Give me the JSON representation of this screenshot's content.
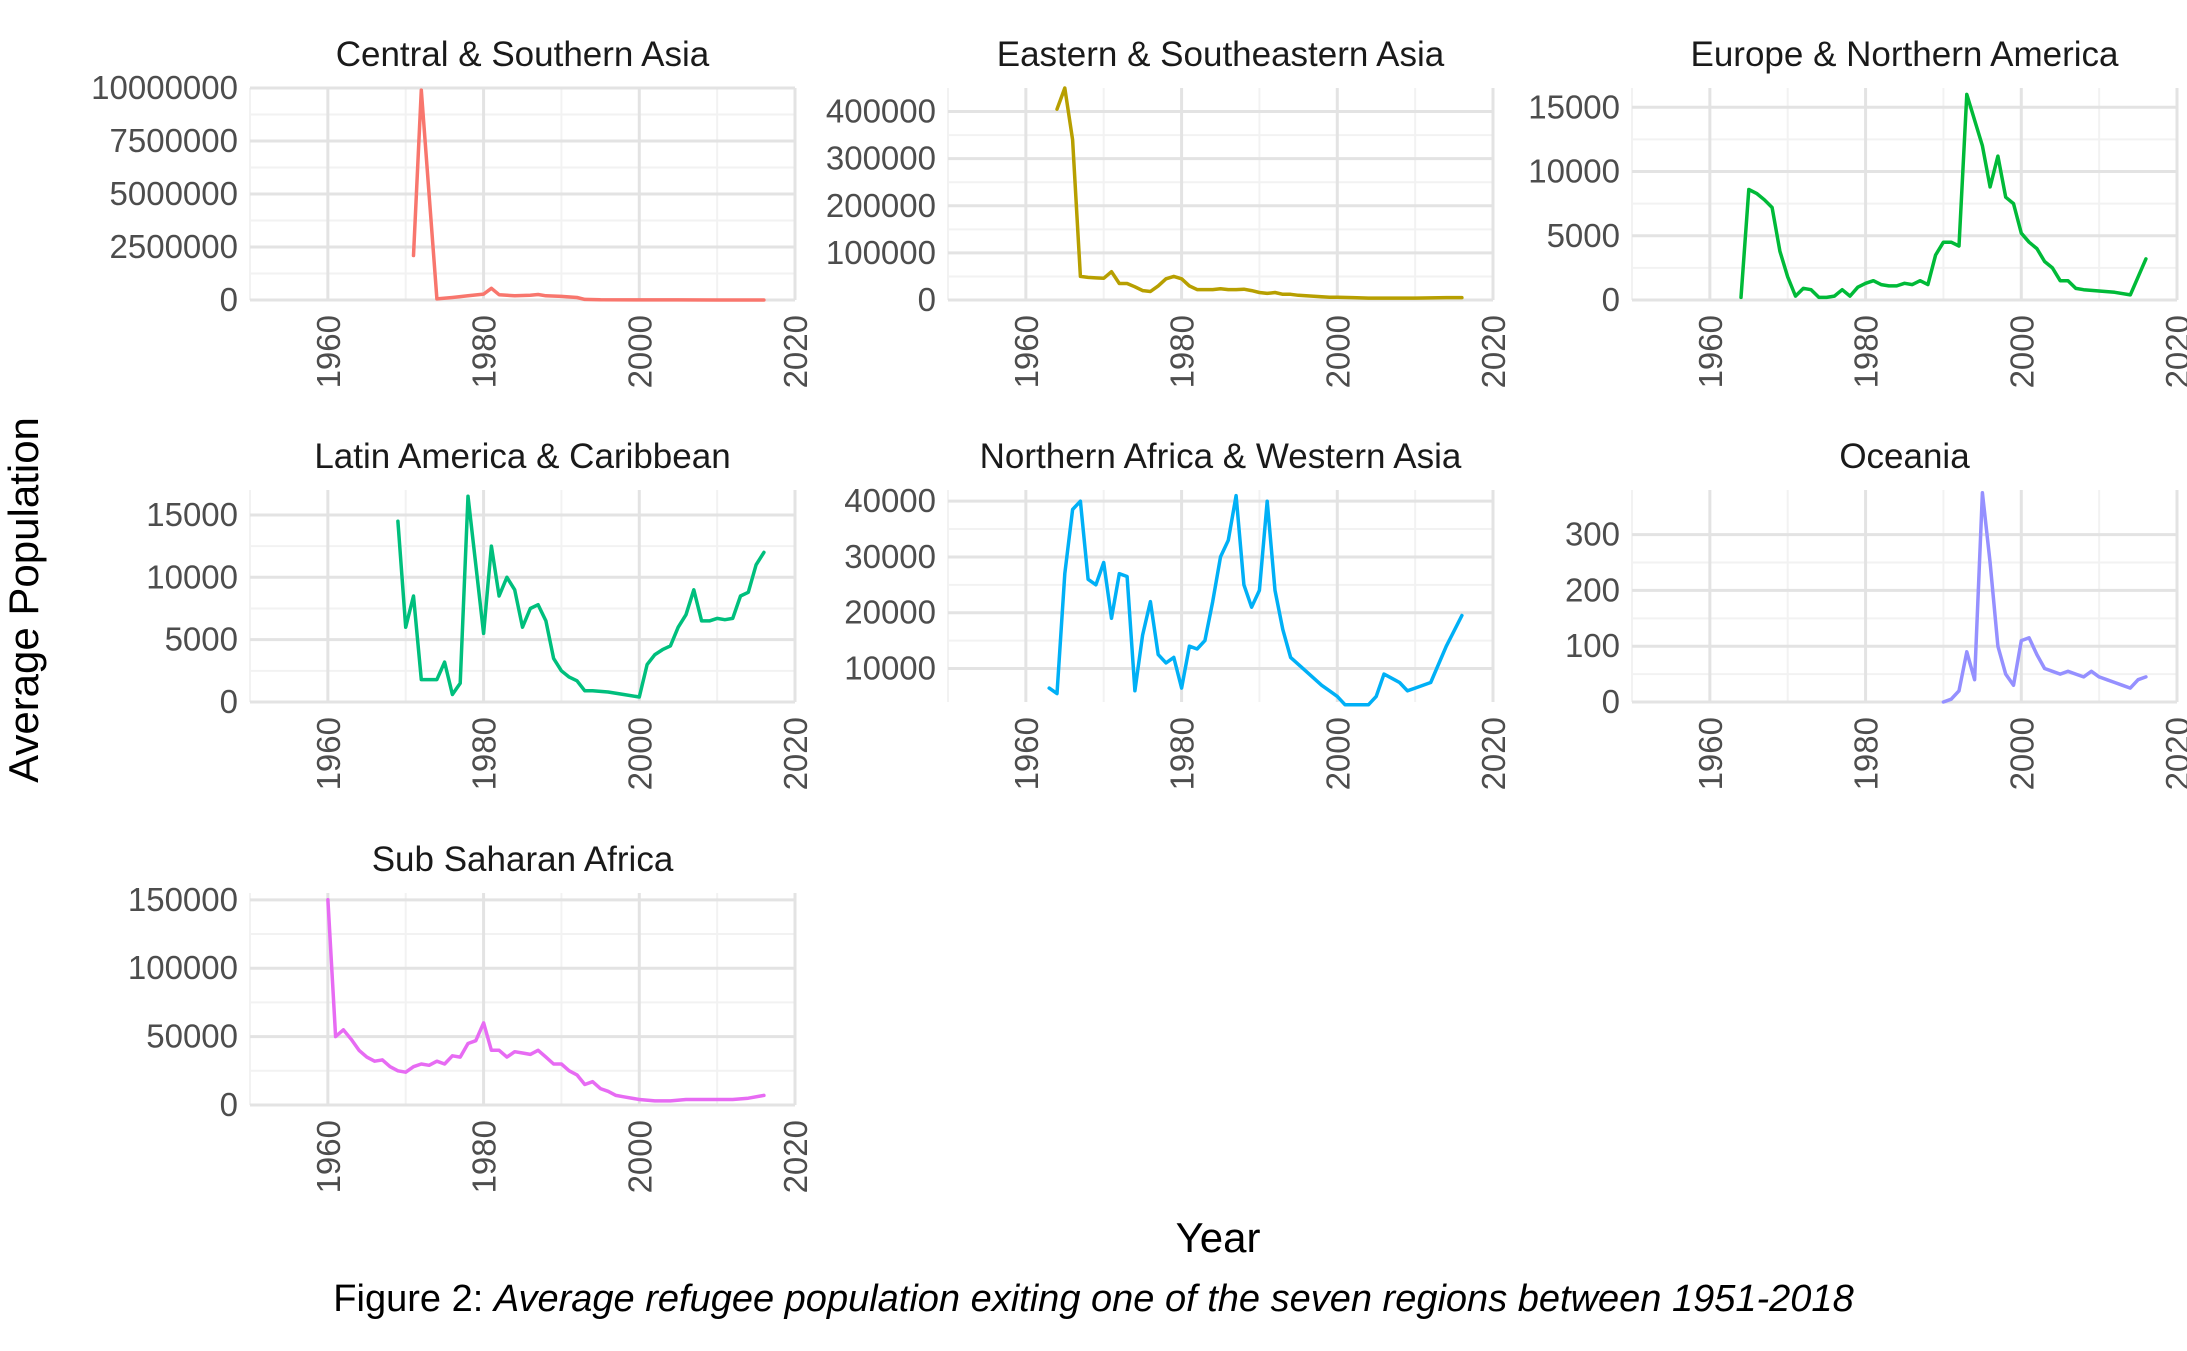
{
  "chart_data": {
    "type": "line",
    "xlabel": "Year",
    "ylabel": "Average Population",
    "xlim": [
      1950,
      2020
    ],
    "x_ticks": [
      1960,
      1980,
      2000,
      2020
    ],
    "grid": true,
    "caption_prefix": "Figure 2: ",
    "caption_text": "Average refugee population exiting one of the seven regions between 1951-2018",
    "panels": [
      {
        "title": "Central & Southern Asia",
        "color": "#F8766D",
        "ylim": [
          0,
          10000000
        ],
        "y_ticks": [
          0,
          2500000,
          5000000,
          7500000,
          10000000
        ],
        "y_tick_labels": [
          "0",
          "2500000",
          "5000000",
          "7500000",
          "10000000"
        ],
        "x": [
          1971,
          1972,
          1974,
          1976,
          1978,
          1980,
          1981,
          1982,
          1984,
          1986,
          1987,
          1988,
          1990,
          1992,
          1993,
          1995,
          2000,
          2005,
          2010,
          2016
        ],
        "y": [
          2100000,
          9900000,
          50000,
          120000,
          200000,
          280000,
          550000,
          250000,
          200000,
          220000,
          260000,
          200000,
          170000,
          120000,
          30000,
          10000,
          5000,
          3000,
          2000,
          2000
        ]
      },
      {
        "title": "Eastern & Southeastern Asia",
        "color": "#B79F00",
        "ylim": [
          0,
          450000
        ],
        "y_ticks": [
          0,
          100000,
          200000,
          300000,
          400000
        ],
        "y_tick_labels": [
          "0",
          "100000",
          "200000",
          "300000",
          "400000"
        ],
        "x": [
          1964,
          1965,
          1966,
          1967,
          1968,
          1969,
          1970,
          1971,
          1972,
          1973,
          1974,
          1975,
          1976,
          1977,
          1978,
          1979,
          1980,
          1981,
          1982,
          1983,
          1984,
          1985,
          1986,
          1987,
          1988,
          1989,
          1990,
          1991,
          1992,
          1993,
          1994,
          1995,
          1996,
          1997,
          1998,
          1999,
          2000,
          2002,
          2004,
          2006,
          2008,
          2010,
          2012,
          2014,
          2016
        ],
        "y": [
          405000,
          450000,
          340000,
          50000,
          48000,
          47000,
          46000,
          60000,
          35000,
          35000,
          28000,
          20000,
          18000,
          30000,
          45000,
          50000,
          45000,
          30000,
          22000,
          22000,
          22000,
          24000,
          22000,
          22000,
          23000,
          20000,
          16000,
          14000,
          16000,
          12000,
          12000,
          10000,
          9000,
          8000,
          7000,
          6000,
          6000,
          5000,
          4000,
          4000,
          4000,
          4000,
          4500,
          5000,
          5000
        ]
      },
      {
        "title": "Europe & Northern America",
        "color": "#00BA38",
        "ylim": [
          0,
          16500
        ],
        "y_ticks": [
          0,
          5000,
          10000,
          15000
        ],
        "y_tick_labels": [
          "0",
          "5000",
          "10000",
          "15000"
        ],
        "x": [
          1964,
          1965,
          1966,
          1967,
          1968,
          1969,
          1970,
          1971,
          1972,
          1973,
          1974,
          1975,
          1976,
          1977,
          1978,
          1979,
          1980,
          1981,
          1982,
          1983,
          1984,
          1985,
          1986,
          1987,
          1988,
          1989,
          1990,
          1991,
          1992,
          1993,
          1994,
          1995,
          1996,
          1997,
          1998,
          1999,
          2000,
          2001,
          2002,
          2003,
          2004,
          2005,
          2006,
          2007,
          2008,
          2010,
          2012,
          2014,
          2016
        ],
        "y": [
          200,
          8600,
          8300,
          7800,
          7200,
          3800,
          1800,
          300,
          900,
          800,
          200,
          200,
          300,
          800,
          300,
          1000,
          1300,
          1500,
          1200,
          1100,
          1100,
          1300,
          1200,
          1500,
          1200,
          3500,
          4500,
          4500,
          4200,
          16000,
          14000,
          12000,
          8800,
          11200,
          8000,
          7500,
          5200,
          4500,
          4000,
          3000,
          2500,
          1500,
          1500,
          900,
          800,
          700,
          600,
          400,
          3200
        ]
      },
      {
        "title": "Latin America & Caribbean",
        "color": "#00BF7D",
        "ylim": [
          0,
          17000
        ],
        "y_ticks": [
          0,
          5000,
          10000,
          15000
        ],
        "y_tick_labels": [
          "0",
          "5000",
          "10000",
          "15000"
        ],
        "x": [
          1969,
          1970,
          1971,
          1972,
          1974,
          1975,
          1976,
          1977,
          1978,
          1980,
          1981,
          1982,
          1983,
          1984,
          1985,
          1986,
          1987,
          1988,
          1989,
          1990,
          1991,
          1992,
          1993,
          1994,
          1996,
          1998,
          2000,
          2001,
          2002,
          2003,
          2004,
          2005,
          2006,
          2007,
          2008,
          2009,
          2010,
          2011,
          2012,
          2013,
          2014,
          2015,
          2016
        ],
        "y": [
          14500,
          6000,
          8500,
          1800,
          1800,
          3200,
          600,
          1500,
          16500,
          5500,
          12500,
          8500,
          10000,
          9000,
          6000,
          7500,
          7800,
          6500,
          3500,
          2500,
          2000,
          1700,
          900,
          900,
          800,
          600,
          400,
          3000,
          3800,
          4200,
          4500,
          6000,
          7000,
          9000,
          6500,
          6500,
          6700,
          6600,
          6700,
          8500,
          8800,
          11000,
          12000
        ]
      },
      {
        "title": "Northern Africa & Western Asia",
        "color": "#00B0F6",
        "ylim": [
          4000,
          42000
        ],
        "y_ticks": [
          10000,
          20000,
          30000,
          40000
        ],
        "y_tick_labels": [
          "10000",
          "20000",
          "30000",
          "40000"
        ],
        "x": [
          1963,
          1964,
          1965,
          1966,
          1967,
          1968,
          1969,
          1970,
          1971,
          1972,
          1973,
          1974,
          1975,
          1976,
          1977,
          1978,
          1979,
          1980,
          1981,
          1982,
          1983,
          1984,
          1985,
          1986,
          1987,
          1988,
          1989,
          1990,
          1991,
          1992,
          1993,
          1994,
          1996,
          1998,
          1999,
          2000,
          2001,
          2002,
          2004,
          2005,
          2006,
          2008,
          2009,
          2010,
          2012,
          2014,
          2016
        ],
        "y": [
          6500,
          5500,
          27000,
          38500,
          40000,
          26000,
          25000,
          29000,
          19000,
          27000,
          26500,
          6000,
          16000,
          22000,
          12500,
          11000,
          12000,
          6500,
          14000,
          13500,
          15000,
          22000,
          30000,
          33000,
          41000,
          25000,
          21000,
          24000,
          40000,
          24000,
          17000,
          12000,
          9500,
          7000,
          6000,
          5000,
          3500,
          3500,
          3500,
          5000,
          9000,
          7500,
          6000,
          6500,
          7500,
          14000,
          19500
        ]
      },
      {
        "title": "Oceania",
        "color": "#9590FF",
        "ylim": [
          0,
          380
        ],
        "y_ticks": [
          0,
          100,
          200,
          300
        ],
        "y_tick_labels": [
          "0",
          "100",
          "200",
          "300"
        ],
        "x": [
          1990,
          1991,
          1992,
          1993,
          1994,
          1995,
          1996,
          1997,
          1998,
          1999,
          2000,
          2001,
          2002,
          2003,
          2004,
          2005,
          2006,
          2007,
          2008,
          2009,
          2010,
          2011,
          2012,
          2013,
          2014,
          2015,
          2016
        ],
        "y": [
          0,
          5,
          20,
          90,
          40,
          375,
          250,
          100,
          50,
          30,
          110,
          115,
          85,
          60,
          55,
          50,
          55,
          50,
          45,
          55,
          45,
          40,
          35,
          30,
          25,
          40,
          45
        ]
      },
      {
        "title": "Sub Saharan Africa",
        "color": "#E76BF3",
        "ylim": [
          0,
          155000
        ],
        "y_ticks": [
          0,
          50000,
          100000,
          150000
        ],
        "y_tick_labels": [
          "0",
          "50000",
          "100000",
          "150000"
        ],
        "x": [
          1960,
          1961,
          1962,
          1963,
          1964,
          1965,
          1966,
          1967,
          1968,
          1969,
          1970,
          1971,
          1972,
          1973,
          1974,
          1975,
          1976,
          1977,
          1978,
          1979,
          1980,
          1981,
          1982,
          1983,
          1984,
          1985,
          1986,
          1987,
          1988,
          1989,
          1990,
          1991,
          1992,
          1993,
          1994,
          1995,
          1996,
          1997,
          1998,
          2000,
          2002,
          2004,
          2006,
          2008,
          2010,
          2012,
          2014,
          2016
        ],
        "y": [
          150000,
          50000,
          55000,
          48000,
          40000,
          35000,
          32000,
          33000,
          28000,
          25000,
          24000,
          28000,
          30000,
          29000,
          32000,
          30000,
          36000,
          35000,
          45000,
          47000,
          60000,
          40000,
          40000,
          35000,
          39000,
          38000,
          37000,
          40000,
          35000,
          30000,
          30000,
          25000,
          22000,
          15000,
          17000,
          12000,
          10000,
          7000,
          6000,
          4000,
          3000,
          3000,
          4000,
          4000,
          4000,
          4000,
          5000,
          7000
        ]
      }
    ]
  }
}
